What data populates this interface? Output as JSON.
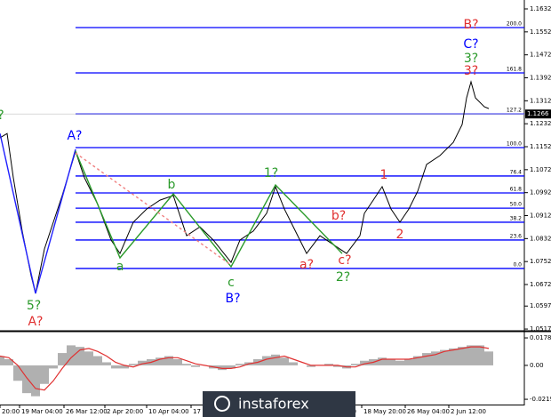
{
  "chart_data": [
    {
      "type": "line",
      "xlim": [
        0,
        590
      ],
      "ylim": [
        1.0511,
        1.1663
      ],
      "yticks": [
        1.1632,
        1.1552,
        1.1472,
        1.1392,
        1.1312,
        1.1232,
        1.1152,
        1.1072,
        1.0992,
        1.0912,
        1.0832,
        1.0752,
        1.0672,
        1.0597,
        1.0517
      ],
      "xticks": [
        {
          "value": 0,
          "label": "20:00"
        },
        {
          "value": 22,
          "label": "19 Mar 04:00"
        },
        {
          "value": 72,
          "label": "26 Mar 12:00"
        },
        {
          "value": 118,
          "label": "2 Apr 20:00"
        },
        {
          "value": 165,
          "label": "10 Apr 04:00"
        },
        {
          "value": 215,
          "label": "17"
        },
        {
          "value": 390,
          "label": "00"
        },
        {
          "value": 407,
          "label": "18 May 20:00"
        },
        {
          "value": 456,
          "label": "26 May 04:00"
        },
        {
          "value": 505,
          "label": "2 Jun 12:00"
        }
      ],
      "last_price": 1.1266,
      "fib_color": "#0000ff",
      "fib_levels": [
        {
          "price": 1.1567,
          "label": "200.0"
        },
        {
          "price": 1.1409,
          "label": "161.8"
        },
        {
          "price": 1.1266,
          "label": "127.2"
        },
        {
          "price": 1.1149,
          "label": "100.0"
        },
        {
          "price": 1.105,
          "label": "76.4"
        },
        {
          "price": 1.0991,
          "label": "61.8"
        },
        {
          "price": 1.0938,
          "label": "50.0"
        },
        {
          "price": 1.0889,
          "label": "38.2"
        },
        {
          "price": 1.0827,
          "label": "23.6"
        },
        {
          "price": 1.0728,
          "label": "0.0"
        }
      ],
      "series": [
        {
          "color": "#000000",
          "x": [
            0,
            8,
            15,
            25,
            35,
            40,
            50,
            60,
            70,
            85,
            95,
            110,
            125,
            135,
            150,
            165,
            180,
            195,
            210,
            225,
            240,
            260,
            270,
            285,
            300,
            310,
            320,
            335,
            345,
            360,
            375,
            390,
            405,
            410,
            420,
            430,
            440,
            450,
            460,
            470,
            480,
            495,
            510,
            520,
            525,
            530,
            535,
            545,
            550
          ],
          "values": [
            1.1183,
            1.1198,
            1.1044,
            1.0858,
            1.0703,
            1.0641,
            1.0796,
            1.0889,
            1.0982,
            1.1136,
            1.1044,
            1.0951,
            1.0827,
            1.078,
            1.0889,
            1.0935,
            1.0966,
            1.0982,
            1.0842,
            1.0873,
            1.0827,
            1.0749,
            1.0827,
            1.0858,
            1.092,
            1.1013,
            1.0935,
            1.0842,
            1.078,
            1.0842,
            1.0811,
            1.078,
            1.0842,
            1.092,
            1.0966,
            1.1013,
            1.0935,
            1.0889,
            1.0935,
            1.0997,
            1.109,
            1.1121,
            1.1167,
            1.1229,
            1.1322,
            1.1378,
            1.1322,
            1.1291,
            1.1285
          ]
        },
        {
          "color": "#2020ff",
          "x": [
            0,
            40,
            85
          ],
          "values": [
            1.1198,
            1.0641,
            1.1143
          ]
        },
        {
          "color": "#2a9a2a",
          "x": [
            85,
            135,
            195,
            260,
            310,
            385
          ],
          "values": [
            1.1136,
            1.0765,
            1.0988,
            1.0734,
            1.1019,
            1.078
          ]
        },
        {
          "color": "#f08080",
          "dash": true,
          "x": [
            85,
            260
          ],
          "values": [
            1.113,
            1.074
          ]
        }
      ],
      "annotations": [
        {
          "text": "?",
          "color": "#2a9a2a"
        },
        {
          "text": "A?",
          "color": "#0000ff"
        },
        {
          "text": "5?",
          "color": "#2a9a2a"
        },
        {
          "text": "A?",
          "color": "#e03030"
        },
        {
          "text": "a",
          "color": "#2a9a2a"
        },
        {
          "text": "b",
          "color": "#2a9a2a"
        },
        {
          "text": "c",
          "color": "#2a9a2a"
        },
        {
          "text": "B?",
          "color": "#0000ff"
        },
        {
          "text": "1?",
          "color": "#2a9a2a"
        },
        {
          "text": "2?",
          "color": "#2a9a2a"
        },
        {
          "text": "a?",
          "color": "#e03030"
        },
        {
          "text": "b?",
          "color": "#e03030"
        },
        {
          "text": "c?",
          "color": "#e03030"
        },
        {
          "text": "1",
          "color": "#e03030"
        },
        {
          "text": "2",
          "color": "#e03030"
        },
        {
          "text": "B?",
          "color": "#e03030"
        },
        {
          "text": "C?",
          "color": "#0000ff"
        },
        {
          "text": "3?",
          "color": "#2a9a2a"
        },
        {
          "text": "3?",
          "color": "#e03030"
        }
      ]
    },
    {
      "type": "bar",
      "xlim": [
        0,
        590
      ],
      "ylim": [
        -0.0254,
        0.0213
      ],
      "yticks": [
        0.01782,
        {
          "value": 0,
          "label": "0.00"
        },
        -0.02198
      ],
      "color": "#b0b0b0",
      "signal_color": "#e03030",
      "x": [
        0,
        10,
        20,
        30,
        40,
        50,
        60,
        70,
        80,
        90,
        100,
        110,
        120,
        130,
        140,
        150,
        160,
        170,
        180,
        190,
        200,
        210,
        220,
        230,
        240,
        250,
        260,
        270,
        280,
        290,
        300,
        310,
        320,
        330,
        340,
        350,
        360,
        370,
        380,
        390,
        400,
        410,
        420,
        430,
        440,
        450,
        460,
        470,
        480,
        490,
        500,
        510,
        520,
        530,
        540,
        550
      ],
      "values": [
        0.006,
        0.004,
        -0.01,
        -0.018,
        -0.02,
        -0.012,
        -0.002,
        0.008,
        0.013,
        0.012,
        0.009,
        0.006,
        0.002,
        -0.002,
        -0.002,
        0.001,
        0.003,
        0.004,
        0.005,
        0.006,
        0.004,
        0.001,
        -0.001,
        0.0,
        -0.002,
        -0.003,
        -0.002,
        0.001,
        0.002,
        0.004,
        0.006,
        0.007,
        0.005,
        0.002,
        0.0,
        -0.001,
        0.0,
        0.001,
        -0.001,
        -0.002,
        0.001,
        0.003,
        0.004,
        0.005,
        0.004,
        0.003,
        0.004,
        0.006,
        0.008,
        0.009,
        0.01,
        0.011,
        0.012,
        0.013,
        0.013,
        0.009
      ],
      "signal": [
        0.006,
        0.005,
        0.0,
        -0.008,
        -0.015,
        -0.016,
        -0.01,
        -0.002,
        0.005,
        0.01,
        0.011,
        0.009,
        0.006,
        0.002,
        0.0,
        -0.001,
        0.001,
        0.002,
        0.004,
        0.005,
        0.005,
        0.003,
        0.001,
        0.0,
        -0.001,
        -0.002,
        -0.002,
        -0.001,
        0.001,
        0.002,
        0.004,
        0.005,
        0.006,
        0.004,
        0.002,
        0.0,
        0.0,
        0.0,
        0.0,
        -0.001,
        -0.001,
        0.001,
        0.002,
        0.004,
        0.004,
        0.004,
        0.004,
        0.005,
        0.006,
        0.007,
        0.009,
        0.01,
        0.011,
        0.012,
        0.012,
        0.011
      ]
    }
  ],
  "watermark": "instaforex"
}
